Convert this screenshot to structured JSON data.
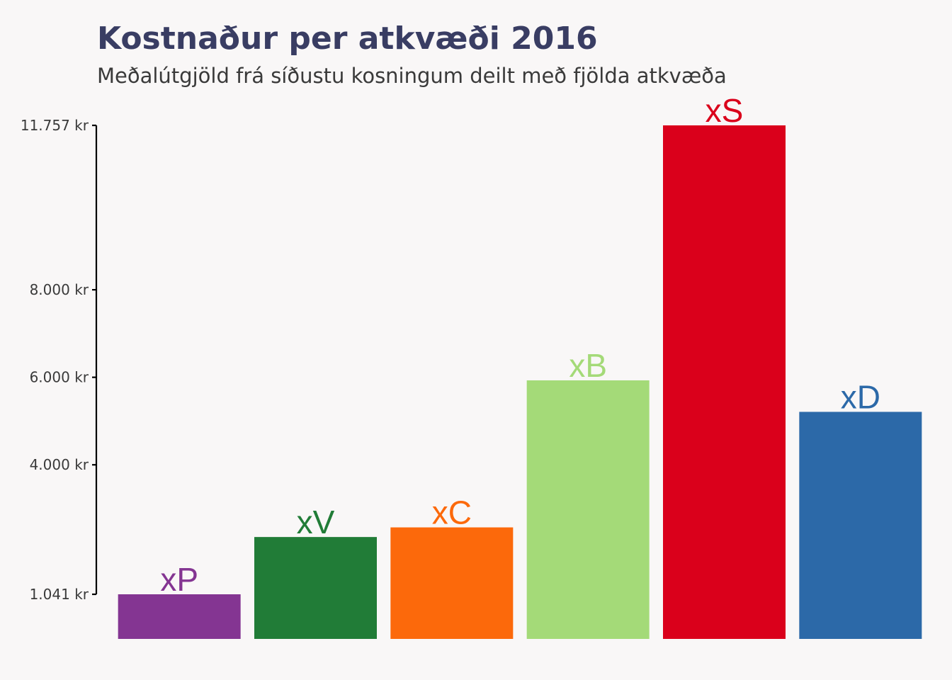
{
  "chart_data": {
    "type": "bar",
    "title": "Kostnaður per atkvæði 2016",
    "subtitle": "Meðalútgjöld frá síðustu kosningum deilt með fjölda atkvæða",
    "xlabel": "",
    "ylabel": "",
    "categories": [
      "xP",
      "xV",
      "xC",
      "xB",
      "xS",
      "xD"
    ],
    "values": [
      1041,
      2350,
      2570,
      5930,
      11757,
      5210
    ],
    "colors": [
      "#843592",
      "#217c37",
      "#fc690b",
      "#a4da78",
      "#da001b",
      "#2c69a8"
    ],
    "ylim": [
      0,
      11757
    ],
    "yticks": [
      1041,
      4000,
      6000,
      8000,
      11757
    ],
    "ytick_labels": [
      "1.041 kr",
      "4.000 kr",
      "6.000 kr",
      "8.000 kr",
      "11.757 kr"
    ],
    "grid": false,
    "legend": "none",
    "title_color": "#393d63",
    "subtitle_color": "#3a3a3a",
    "axis_color": "#000000"
  }
}
